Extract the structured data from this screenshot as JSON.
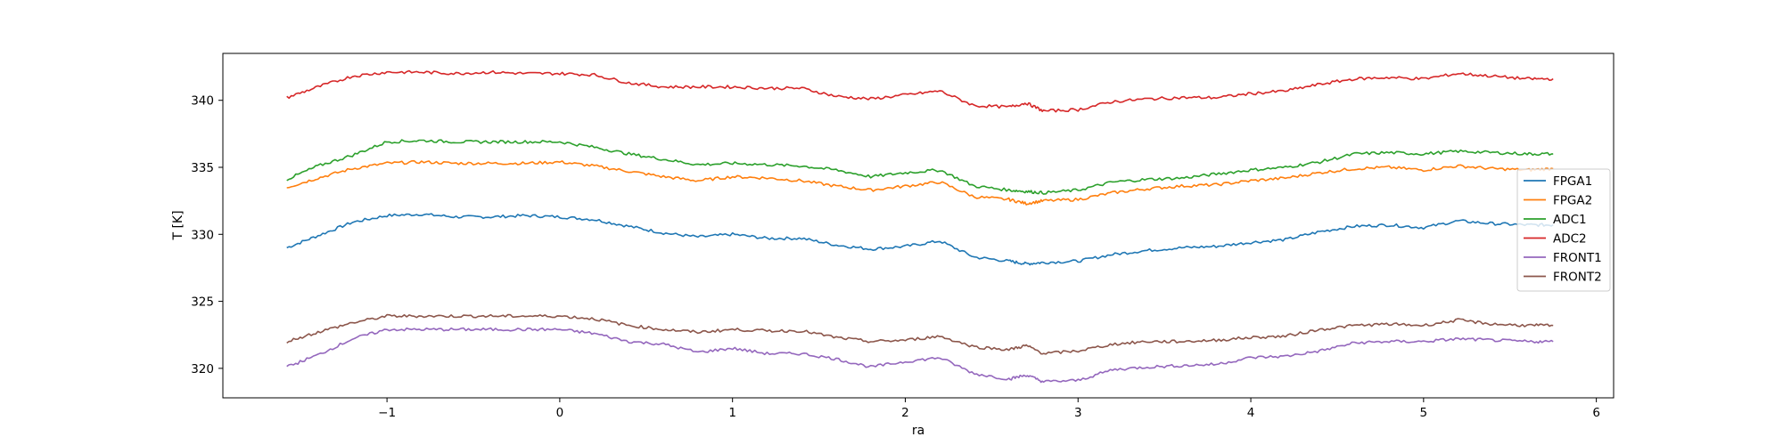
{
  "chart_data": {
    "type": "line",
    "title": "",
    "xlabel": "ra",
    "ylabel": "T [K]",
    "xlim": [
      -1.95,
      6.1
    ],
    "ylim": [
      317.8,
      343.5
    ],
    "xticks": [
      -1,
      0,
      1,
      2,
      3,
      4,
      5,
      6
    ],
    "xtick_labels": [
      "−1",
      "0",
      "1",
      "2",
      "3",
      "4",
      "5",
      "6"
    ],
    "yticks": [
      320,
      325,
      330,
      335,
      340
    ],
    "ytick_labels": [
      "320",
      "325",
      "330",
      "335",
      "340"
    ],
    "grid": false,
    "legend": "right",
    "x": [
      -1.58,
      -1.4,
      -1.2,
      -1.0,
      -0.8,
      -0.6,
      -0.4,
      -0.2,
      0.0,
      0.2,
      0.4,
      0.6,
      0.8,
      1.0,
      1.2,
      1.4,
      1.6,
      1.8,
      2.0,
      2.2,
      2.4,
      2.6,
      2.7,
      2.8,
      3.0,
      3.2,
      3.4,
      3.6,
      3.8,
      4.0,
      4.2,
      4.4,
      4.6,
      4.8,
      5.0,
      5.2,
      5.4,
      5.6,
      5.75
    ],
    "series": [
      {
        "name": "FPGA1",
        "color": "#1f77b4",
        "values": [
          329.0,
          329.9,
          330.9,
          331.4,
          331.5,
          331.3,
          331.3,
          331.4,
          331.3,
          331.1,
          330.6,
          330.1,
          329.8,
          330.0,
          329.7,
          329.7,
          329.2,
          328.9,
          329.1,
          329.5,
          328.3,
          328.0,
          327.8,
          327.9,
          328.0,
          328.5,
          328.8,
          329.0,
          329.1,
          329.4,
          329.6,
          330.2,
          330.6,
          330.7,
          330.5,
          331.0,
          330.8,
          330.7,
          330.7
        ]
      },
      {
        "name": "FPGA2",
        "color": "#ff7f0e",
        "values": [
          333.5,
          334.2,
          334.9,
          335.3,
          335.4,
          335.3,
          335.3,
          335.3,
          335.4,
          335.1,
          334.7,
          334.3,
          334.0,
          334.3,
          334.2,
          334.0,
          333.6,
          333.3,
          333.6,
          333.9,
          332.8,
          332.6,
          332.3,
          332.5,
          332.6,
          333.1,
          333.4,
          333.6,
          333.7,
          334.0,
          334.2,
          334.6,
          334.9,
          335.0,
          334.8,
          335.1,
          334.9,
          334.8,
          334.9
        ]
      },
      {
        "name": "ADC1",
        "color": "#2ca02c",
        "values": [
          334.1,
          335.1,
          335.9,
          336.9,
          337.0,
          336.9,
          336.9,
          336.9,
          336.9,
          336.5,
          336.0,
          335.6,
          335.2,
          335.3,
          335.2,
          335.1,
          334.8,
          334.3,
          334.6,
          334.8,
          333.6,
          333.3,
          333.2,
          333.1,
          333.3,
          333.9,
          334.1,
          334.2,
          334.5,
          334.8,
          335.0,
          335.4,
          336.0,
          336.1,
          336.0,
          336.2,
          336.1,
          336.0,
          336.0
        ]
      },
      {
        "name": "ADC2",
        "color": "#d62728",
        "values": [
          340.2,
          341.0,
          341.8,
          342.1,
          342.1,
          342.0,
          342.1,
          342.0,
          342.0,
          341.9,
          341.3,
          341.0,
          341.0,
          341.0,
          340.9,
          340.9,
          340.3,
          340.1,
          340.4,
          340.7,
          339.6,
          339.5,
          339.8,
          339.2,
          339.3,
          339.9,
          340.1,
          340.2,
          340.2,
          340.5,
          340.7,
          341.2,
          341.6,
          341.7,
          341.6,
          342.0,
          341.8,
          341.6,
          341.6
        ]
      },
      {
        "name": "FRONT1",
        "color": "#9467bd",
        "values": [
          320.1,
          321.0,
          322.2,
          322.9,
          322.9,
          322.9,
          322.9,
          322.9,
          322.9,
          322.6,
          322.0,
          321.8,
          321.2,
          321.5,
          321.1,
          321.1,
          320.7,
          320.1,
          320.5,
          320.8,
          319.6,
          319.2,
          319.5,
          319.0,
          319.1,
          319.9,
          320.1,
          320.2,
          320.3,
          320.8,
          320.9,
          321.3,
          321.9,
          322.0,
          322.0,
          322.2,
          322.1,
          322.0,
          322.0
        ]
      },
      {
        "name": "FRONT2",
        "color": "#8c564b",
        "values": [
          322.0,
          322.7,
          323.4,
          323.9,
          323.9,
          323.9,
          323.9,
          323.9,
          323.9,
          323.7,
          323.2,
          322.9,
          322.7,
          322.9,
          322.8,
          322.8,
          322.3,
          322.0,
          322.1,
          322.4,
          321.6,
          321.4,
          321.7,
          321.1,
          321.3,
          321.8,
          322.0,
          322.0,
          322.1,
          322.3,
          322.4,
          322.9,
          323.2,
          323.3,
          323.2,
          323.6,
          323.3,
          323.2,
          323.2
        ]
      }
    ]
  }
}
